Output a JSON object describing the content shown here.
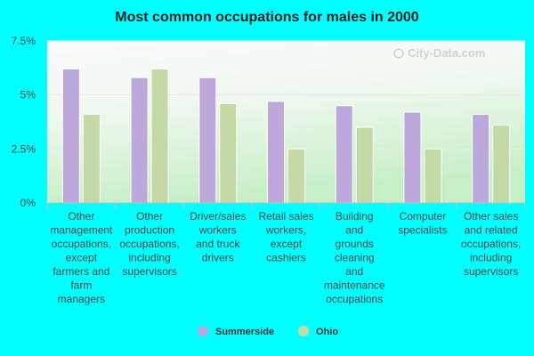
{
  "chart_data": {
    "type": "bar",
    "title": "Most common occupations for males in 2000",
    "categories": [
      [
        "Other",
        "management",
        "occupations,",
        "except",
        "farmers and",
        "farm",
        "managers"
      ],
      [
        "Other",
        "production",
        "occupations,",
        "including",
        "supervisors"
      ],
      [
        "Driver/sales",
        "workers",
        "and truck",
        "drivers"
      ],
      [
        "Retail sales",
        "workers,",
        "except",
        "cashiers"
      ],
      [
        "Building",
        "and",
        "grounds",
        "cleaning",
        "and",
        "maintenance",
        "occupations"
      ],
      [
        "Computer",
        "specialists"
      ],
      [
        "Other sales",
        "and related",
        "occupations,",
        "including",
        "supervisors"
      ]
    ],
    "series": [
      {
        "name": "Summerside",
        "color": "#bca8da",
        "values": [
          6.2,
          5.8,
          5.8,
          4.7,
          4.5,
          4.2,
          4.1
        ]
      },
      {
        "name": "Ohio",
        "color": "#c4d9a6",
        "values": [
          4.1,
          6.2,
          4.6,
          2.5,
          3.5,
          2.5,
          3.6
        ]
      }
    ],
    "y_ticks": [
      "0%",
      "2.5%",
      "5%",
      "7.5%"
    ],
    "ylim": [
      0,
      7.5
    ],
    "unit": "%",
    "legend_position": "bottom-center",
    "watermark": "City-Data.com",
    "colors": {
      "background": "#00ffff",
      "plot_top": "#f7f7fb",
      "plot_bottom": "#c9f0c9"
    }
  }
}
